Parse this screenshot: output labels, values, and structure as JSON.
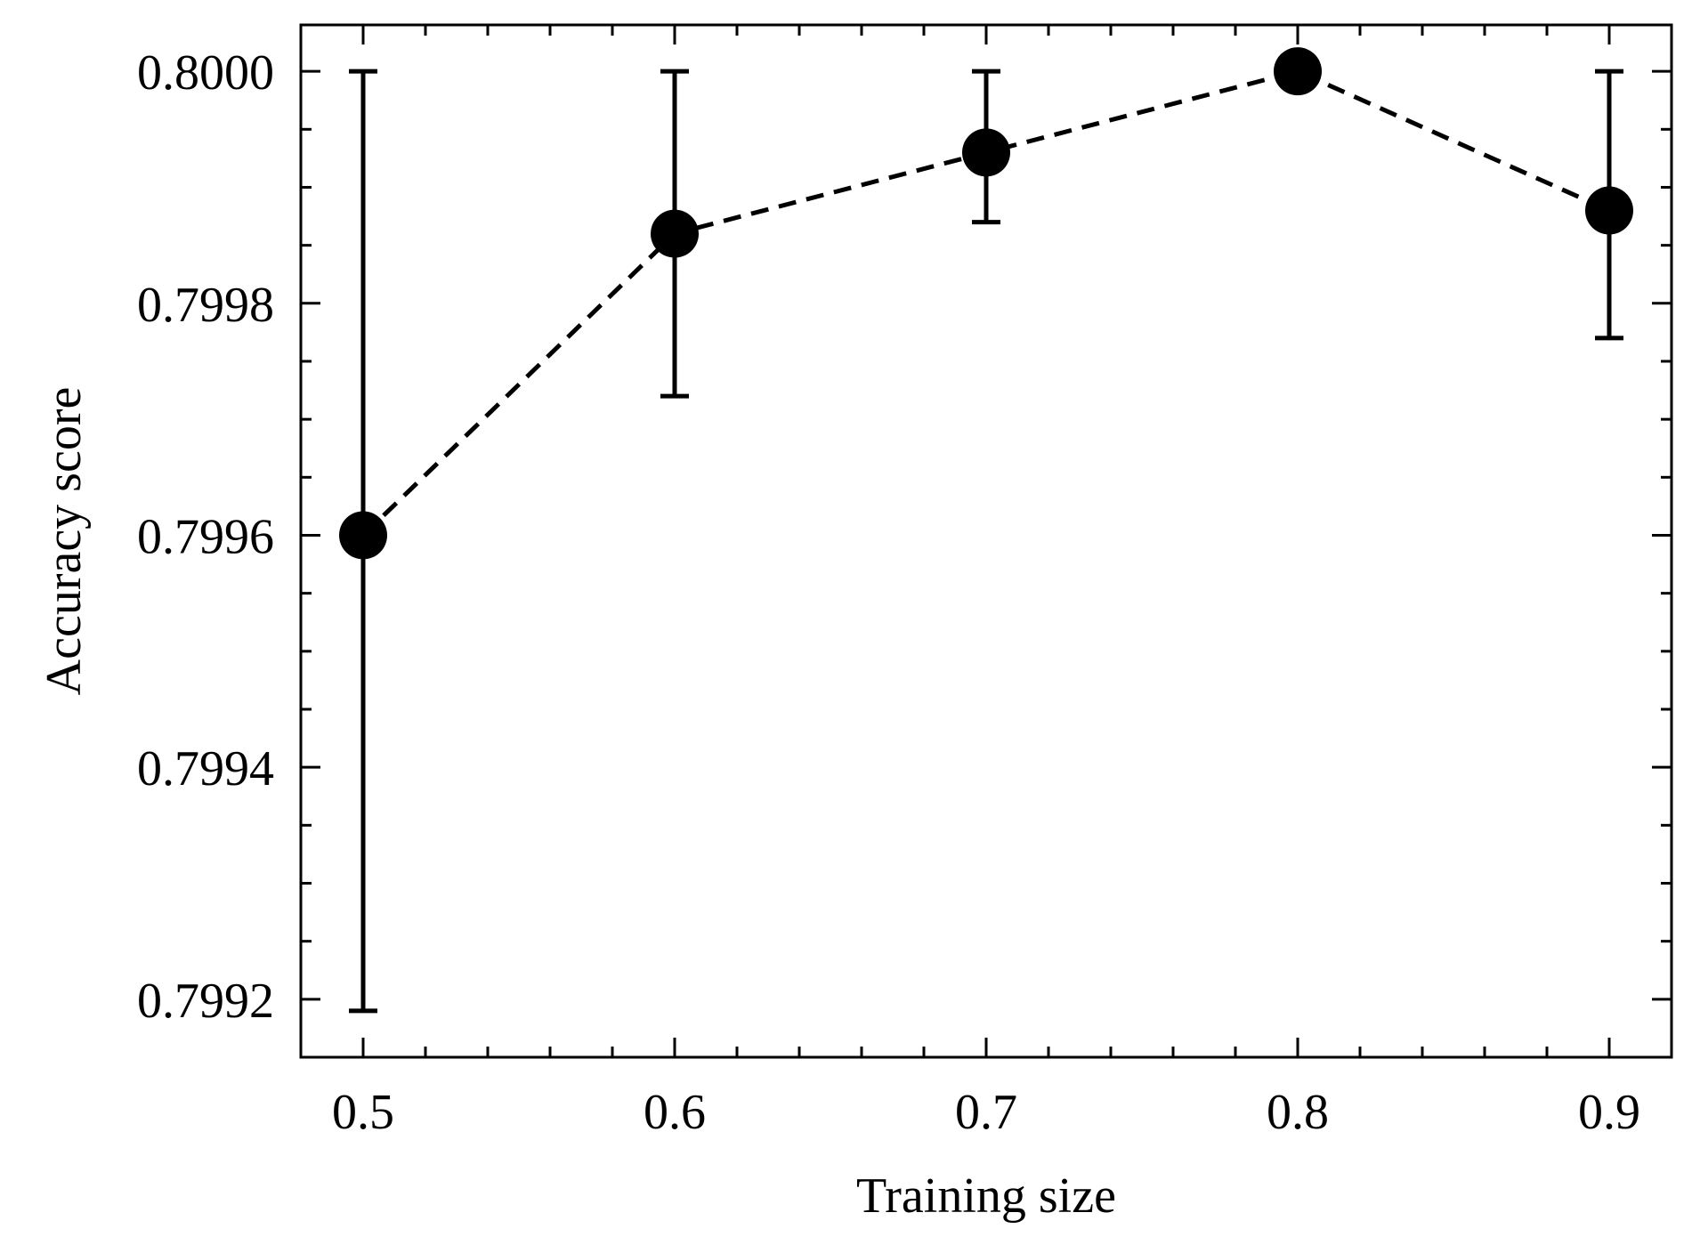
{
  "chart_data": {
    "type": "line",
    "x": [
      0.5,
      0.6,
      0.7,
      0.8,
      0.9
    ],
    "series": [
      {
        "values": [
          0.7996,
          0.79986,
          0.79993,
          0.8,
          0.79988
        ],
        "error_lower": [
          0.79919,
          0.79972,
          0.79987,
          0.8,
          0.79977
        ],
        "error_upper": [
          0.8,
          0.8,
          0.8,
          0.8,
          0.8
        ],
        "line_style": "dashed",
        "color": "#000000"
      }
    ],
    "xlabel": "Training size",
    "ylabel": "Accuracy score",
    "xlim": [
      0.48,
      0.92
    ],
    "ylim": [
      0.79915,
      0.80004
    ],
    "xticks": [
      0.5,
      0.6,
      0.7,
      0.8,
      0.9
    ],
    "xtick_labels": [
      "0.5",
      "0.6",
      "0.7",
      "0.8",
      "0.9"
    ],
    "yticks": [
      0.7992,
      0.7994,
      0.7996,
      0.7998,
      0.8
    ],
    "ytick_labels": [
      "0.7992",
      "0.7994",
      "0.7996",
      "0.7998",
      "0.8000"
    ],
    "grid": false
  }
}
